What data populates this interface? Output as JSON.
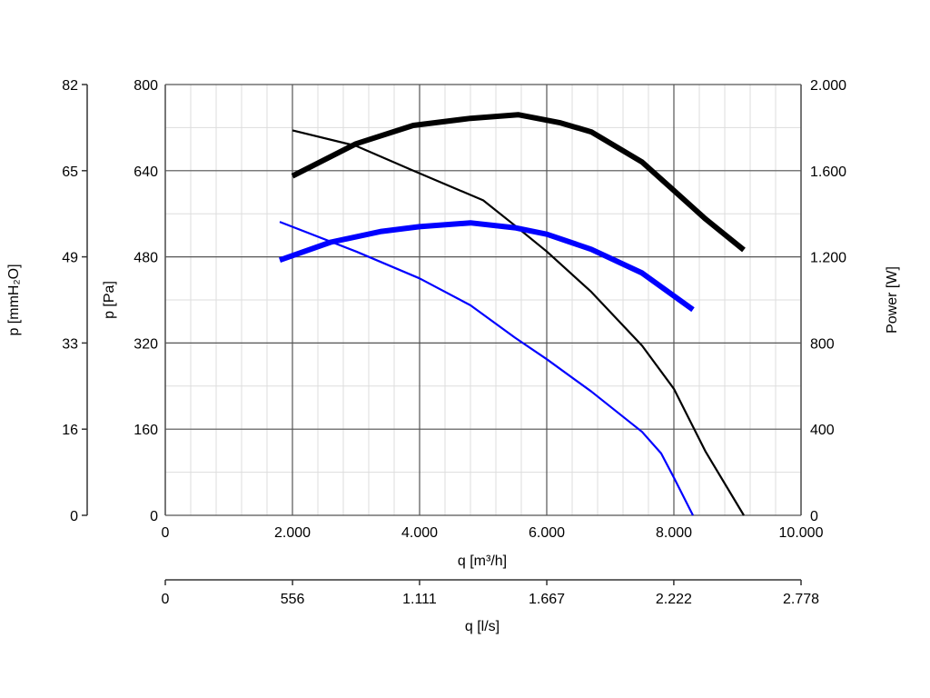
{
  "chart_data": {
    "type": "line",
    "x_axis": {
      "label": "q [m³/h]",
      "range": [
        0,
        10000
      ],
      "ticks": [
        0,
        2000,
        4000,
        6000,
        8000,
        10000
      ],
      "tick_labels": [
        "0",
        "2.000",
        "4.000",
        "6.000",
        "8.000",
        "10.000"
      ]
    },
    "x_axis_secondary": {
      "label": "q [l/s]",
      "range": [
        0,
        2778
      ],
      "ticks": [
        0,
        556,
        1111,
        1667,
        2222,
        2778
      ],
      "tick_labels": [
        "0",
        "556",
        "1.111",
        "1.667",
        "2.222",
        "2.778"
      ]
    },
    "y_axis_left": {
      "label": "p [Pa]",
      "range": [
        0,
        800
      ],
      "ticks": [
        0,
        160,
        320,
        480,
        640,
        800
      ],
      "tick_labels": [
        "0",
        "160",
        "320",
        "480",
        "640",
        "800"
      ]
    },
    "y_axis_left_outer": {
      "label": "p [mmH₂O]",
      "range": [
        0,
        82
      ],
      "tick_labels": [
        "0",
        "16",
        "33",
        "49",
        "65",
        "82"
      ]
    },
    "y_axis_right": {
      "label": "Power [W]",
      "range": [
        0,
        2000
      ],
      "ticks": [
        0,
        400,
        800,
        1200,
        1600,
        2000
      ],
      "tick_labels": [
        "0",
        "400",
        "800",
        "1.200",
        "1.600",
        "2.000"
      ]
    },
    "grid": true,
    "series": [
      {
        "color": "#000000",
        "style": "thin",
        "axis": "left",
        "points": [
          [
            2000,
            715
          ],
          [
            3000,
            686
          ],
          [
            3900,
            640
          ],
          [
            5000,
            585
          ],
          [
            5500,
            538
          ],
          [
            6000,
            490
          ],
          [
            6700,
            415
          ],
          [
            7500,
            315
          ],
          [
            8000,
            235
          ],
          [
            8500,
            118
          ],
          [
            9100,
            0
          ]
        ]
      },
      {
        "color": "#0000ff",
        "style": "thin",
        "axis": "left",
        "points": [
          [
            1800,
            545
          ],
          [
            3000,
            490
          ],
          [
            4000,
            440
          ],
          [
            4800,
            390
          ],
          [
            5500,
            330
          ],
          [
            6000,
            290
          ],
          [
            6700,
            230
          ],
          [
            7500,
            155
          ],
          [
            7800,
            115
          ],
          [
            8000,
            70
          ],
          [
            8300,
            0
          ]
        ]
      },
      {
        "color": "#000000",
        "style": "thick",
        "axis": "right",
        "points": [
          [
            2000,
            1575
          ],
          [
            3000,
            1725
          ],
          [
            3900,
            1810
          ],
          [
            4800,
            1843
          ],
          [
            5550,
            1860
          ],
          [
            6200,
            1823
          ],
          [
            6700,
            1780
          ],
          [
            7500,
            1640
          ],
          [
            8000,
            1508
          ],
          [
            8500,
            1375
          ],
          [
            9100,
            1232
          ]
        ]
      },
      {
        "color": "#0000ff",
        "style": "thick",
        "axis": "right",
        "points": [
          [
            1800,
            1185
          ],
          [
            2600,
            1268
          ],
          [
            3400,
            1318
          ],
          [
            4000,
            1340
          ],
          [
            4800,
            1358
          ],
          [
            5500,
            1335
          ],
          [
            6000,
            1305
          ],
          [
            6700,
            1235
          ],
          [
            7500,
            1125
          ],
          [
            8300,
            955
          ]
        ]
      }
    ]
  }
}
